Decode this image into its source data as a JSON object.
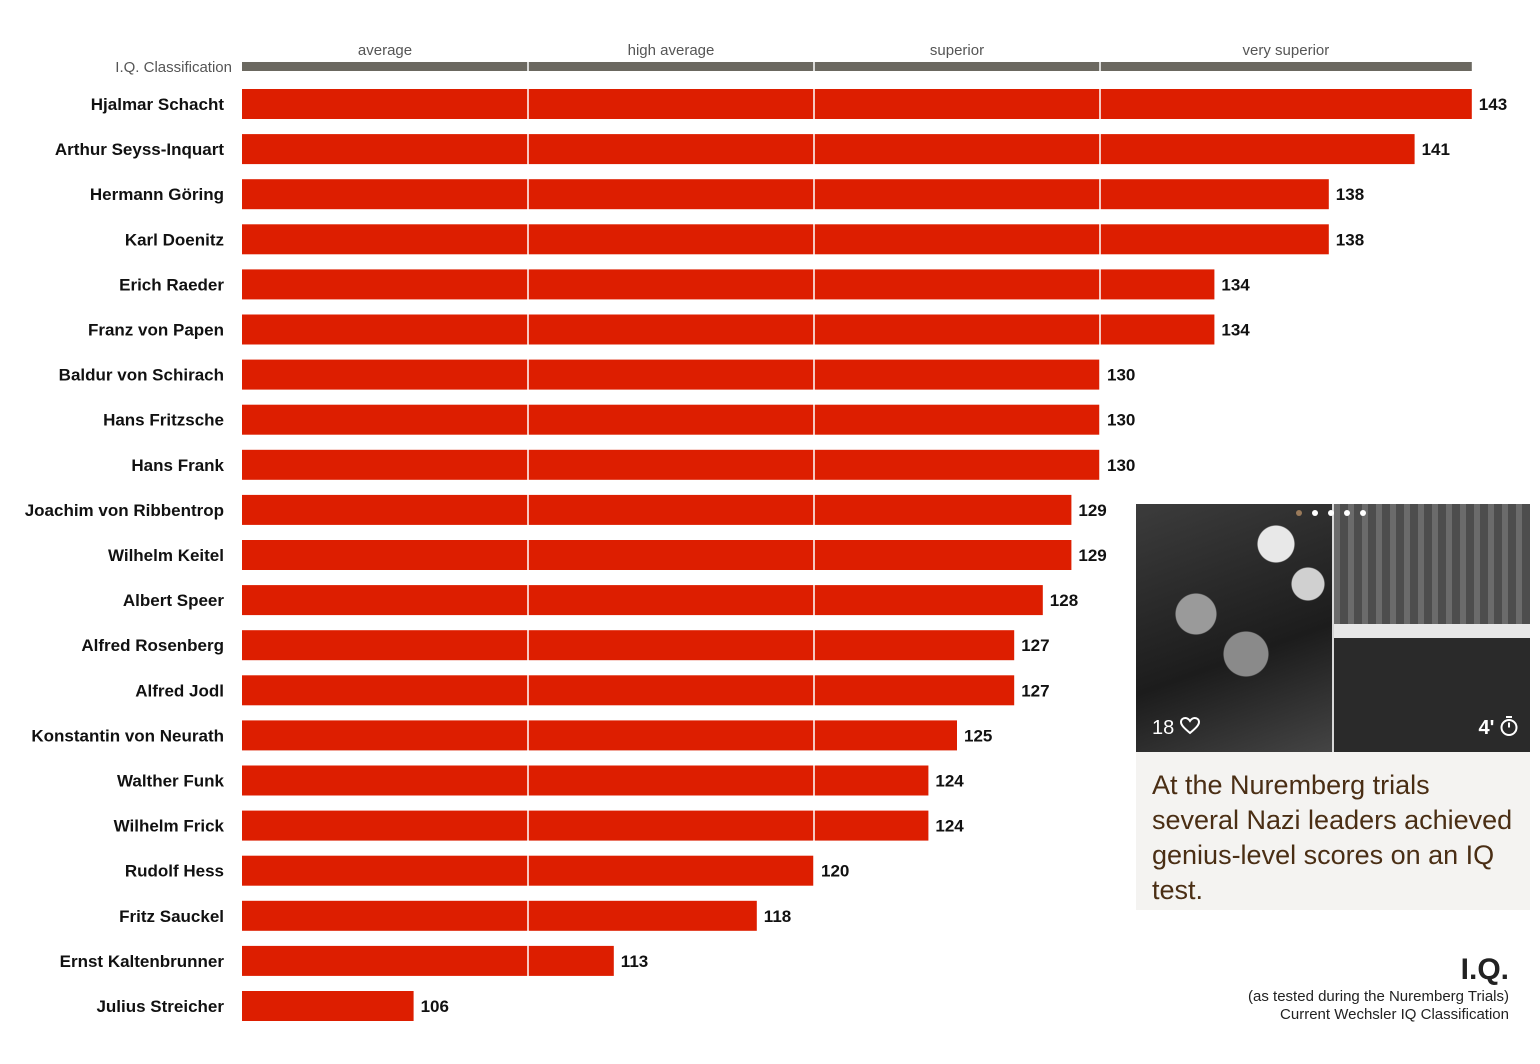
{
  "chart_data": {
    "type": "bar",
    "orientation": "horizontal",
    "axis_title": "I.Q. Classification",
    "classification_bands": [
      {
        "label": "average",
        "from": 90,
        "to": 110
      },
      {
        "label": "high average",
        "from": 110,
        "to": 120
      },
      {
        "label": "superior",
        "from": 120,
        "to": 130
      },
      {
        "label": "very superior",
        "from": 130,
        "to": 143
      }
    ],
    "xlim": [
      100,
      143
    ],
    "gridlines_at": [
      110,
      120,
      130
    ],
    "categories": [
      "Hjalmar Schacht",
      "Arthur Seyss-Inquart",
      "Hermann Göring",
      "Karl Doenitz",
      "Erich Raeder",
      "Franz von Papen",
      "Baldur von Schirach",
      "Hans Fritzsche",
      "Hans Frank",
      "Joachim von Ribbentrop",
      "Wilhelm Keitel",
      "Albert Speer",
      "Alfred Rosenberg",
      "Alfred Jodl",
      "Konstantin von Neurath",
      "Walther Funk",
      "Wilhelm Frick",
      "Rudolf Hess",
      "Fritz Sauckel",
      "Ernst Kaltenbrunner",
      "Julius Streicher"
    ],
    "values": [
      143,
      141,
      138,
      138,
      134,
      134,
      130,
      130,
      130,
      129,
      129,
      128,
      127,
      127,
      125,
      124,
      124,
      120,
      118,
      113,
      106
    ],
    "bar_color": "#dd1e00",
    "header_bar_color": "#6b6860",
    "legend": {
      "title": "I.Q.",
      "line1": "(as tested during the Nuremberg Trials)",
      "line2": "Current Wechsler IQ Classification"
    }
  },
  "card": {
    "likes": "18",
    "likes_icon": "heart-icon",
    "duration": "4'",
    "duration_icon": "stopwatch-icon",
    "text": "At the Nuremberg trials several Nazi leaders achieved genius-level scores on an IQ test.",
    "text_color": "#4a2e14",
    "slides": 5,
    "active_slide": 1
  }
}
